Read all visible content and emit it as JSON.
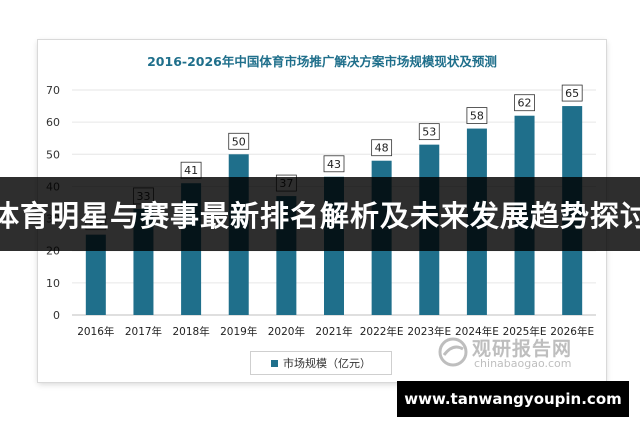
{
  "chart_data": {
    "type": "bar",
    "title": "2016-2026年中国体育市场推广解决方案市场规模现状及预测",
    "categories": [
      "2016年",
      "2017年",
      "2018年",
      "2019年",
      "2020年",
      "2021年",
      "2022年E",
      "2023年E",
      "2024年E",
      "2025年E",
      "2026年E"
    ],
    "series": [
      {
        "name": "市场规模（亿元）",
        "values": [
          25,
          33,
          41,
          50,
          37,
          43,
          48,
          53,
          58,
          62,
          65
        ]
      }
    ],
    "ylim": [
      0,
      70
    ],
    "yticks": [
      0,
      10,
      20,
      30,
      40,
      50,
      60,
      70
    ],
    "legend": "bottom-center",
    "grid": true,
    "bar_color": "#1f6f8b"
  },
  "banner": {
    "text": "体育明星与赛事最新排名解析及未来发展趋势探讨"
  },
  "watermark": {
    "cn": "观研报告网",
    "en": "chinabaogao.com"
  },
  "site": {
    "text": "www.tanwangyoupin.com"
  }
}
